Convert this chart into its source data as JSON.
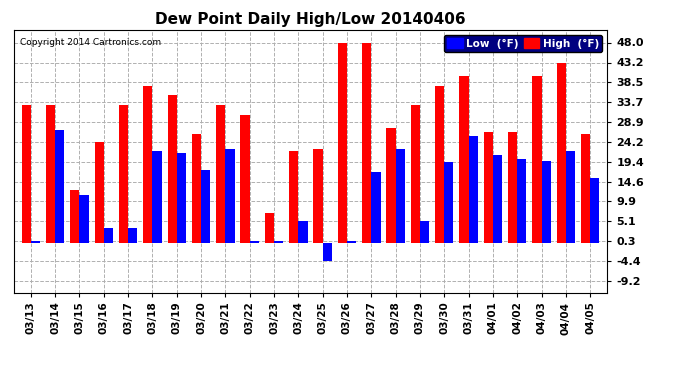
{
  "title": "Dew Point Daily High/Low 20140406",
  "copyright": "Copyright 2014 Cartronics.com",
  "legend_low": "Low  (°F)",
  "legend_high": "High  (°F)",
  "dates": [
    "03/13",
    "03/14",
    "03/15",
    "03/16",
    "03/17",
    "03/18",
    "03/19",
    "03/20",
    "03/21",
    "03/22",
    "03/23",
    "03/24",
    "03/25",
    "03/26",
    "03/27",
    "03/28",
    "03/29",
    "03/30",
    "03/31",
    "04/01",
    "04/02",
    "04/03",
    "04/04",
    "04/05"
  ],
  "high": [
    33.0,
    33.0,
    12.5,
    24.2,
    33.0,
    37.5,
    35.5,
    26.0,
    33.0,
    30.5,
    7.0,
    22.0,
    22.5,
    48.0,
    48.0,
    27.5,
    33.0,
    37.5,
    40.0,
    26.5,
    26.5,
    40.0,
    43.2,
    26.0
  ],
  "low": [
    0.3,
    27.0,
    11.5,
    3.5,
    3.5,
    22.0,
    21.5,
    17.5,
    22.5,
    0.3,
    0.3,
    5.1,
    -4.4,
    0.3,
    17.0,
    22.5,
    5.1,
    19.4,
    25.5,
    21.0,
    20.0,
    19.5,
    22.0,
    15.5
  ],
  "high_color": "#ff0000",
  "low_color": "#0000ff",
  "bg_color": "#ffffff",
  "plot_bg_color": "#ffffff",
  "grid_color": "#b0b0b0",
  "title_fontsize": 11,
  "yticks": [
    -9.2,
    -4.4,
    0.3,
    5.1,
    9.9,
    14.6,
    19.4,
    24.2,
    28.9,
    33.7,
    38.5,
    43.2,
    48.0
  ],
  "ylim": [
    -12.0,
    51.0
  ],
  "bar_width": 0.38
}
